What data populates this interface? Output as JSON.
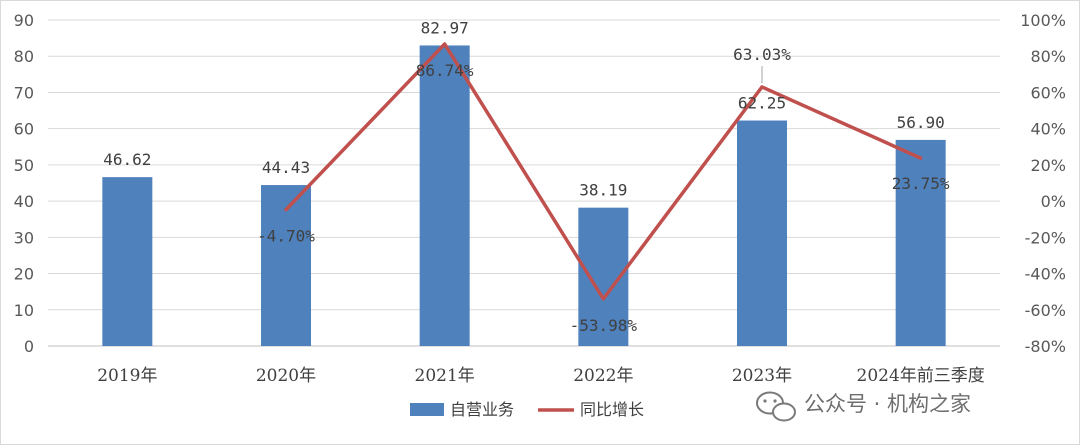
{
  "chart_data": {
    "type": "bar",
    "categories": [
      "2019年",
      "2020年",
      "2021年",
      "2022年",
      "2023年",
      "2024年前三季度"
    ],
    "series": [
      {
        "name": "自营业务",
        "type": "bar",
        "axis": "left",
        "color": "#4f81bd",
        "values": [
          46.62,
          44.43,
          82.97,
          38.19,
          62.25,
          56.9
        ],
        "labels": [
          "46.62",
          "44.43",
          "82.97",
          "38.19",
          "62.25",
          "56.90"
        ]
      },
      {
        "name": "同比增长",
        "type": "line",
        "axis": "right",
        "color": "#c0504d",
        "values": [
          null,
          -4.7,
          86.74,
          -53.98,
          63.03,
          23.75
        ],
        "labels": [
          "",
          "-4.70%",
          "86.74%",
          "-53.98%",
          "63.03%",
          "23.75%"
        ]
      }
    ],
    "y_left": {
      "min": 0,
      "max": 90,
      "step": 10,
      "ticks": [
        "0",
        "10",
        "20",
        "30",
        "40",
        "50",
        "60",
        "70",
        "80",
        "90"
      ]
    },
    "y_right": {
      "min": -80,
      "max": 100,
      "step": 20,
      "ticks": [
        "-80%",
        "-60%",
        "-40%",
        "-20%",
        "0%",
        "20%",
        "40%",
        "60%",
        "80%",
        "100%"
      ]
    },
    "grid": true,
    "legend_position": "bottom"
  },
  "watermark": {
    "text": "公众号 · 机构之家",
    "icon": "wechat-icon"
  }
}
